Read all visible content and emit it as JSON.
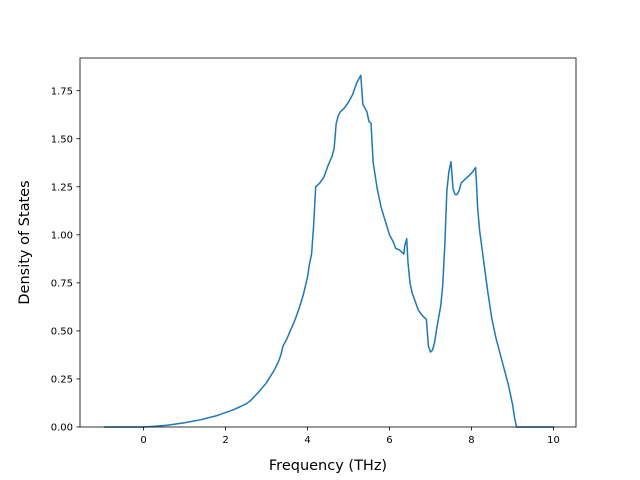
{
  "chart_data": {
    "type": "line",
    "title": "",
    "xlabel": "Frequency (THz)",
    "ylabel": "Density of States",
    "xlim": [
      -1.55,
      10.55
    ],
    "ylim": [
      0.0,
      1.92
    ],
    "xticks": [
      0,
      2,
      4,
      6,
      8,
      10
    ],
    "xtick_labels": [
      "0",
      "2",
      "4",
      "6",
      "8",
      "10"
    ],
    "yticks": [
      0.0,
      0.25,
      0.5,
      0.75,
      1.0,
      1.25,
      1.5,
      1.75
    ],
    "ytick_labels": [
      "0.00",
      "0.25",
      "0.50",
      "0.75",
      "1.00",
      "1.25",
      "1.50",
      "1.75"
    ],
    "grid": false,
    "legend": "none",
    "series": [
      {
        "color": "#1f77b4",
        "x": [
          -0.95,
          0.0,
          0.3,
          0.6,
          1.0,
          1.4,
          1.8,
          2.2,
          2.5,
          2.6,
          2.8,
          3.0,
          3.1,
          3.2,
          3.3,
          3.35,
          3.4,
          3.5,
          3.6,
          3.7,
          3.8,
          3.9,
          4.0,
          4.05,
          4.1,
          4.15,
          4.2,
          4.3,
          4.4,
          4.5,
          4.6,
          4.65,
          4.7,
          4.75,
          4.8,
          4.9,
          5.0,
          5.05,
          5.1,
          5.15,
          5.2,
          5.25,
          5.3,
          5.35,
          5.4,
          5.45,
          5.5,
          5.55,
          5.6,
          5.7,
          5.8,
          5.9,
          6.0,
          6.1,
          6.15,
          6.25,
          6.35,
          6.37,
          6.42,
          6.45,
          6.5,
          6.55,
          6.6,
          6.7,
          6.8,
          6.85,
          6.9,
          6.95,
          7.0,
          7.05,
          7.1,
          7.15,
          7.25,
          7.3,
          7.35,
          7.4,
          7.45,
          7.5,
          7.55,
          7.6,
          7.65,
          7.7,
          7.75,
          7.8,
          7.85,
          8.0,
          8.1,
          8.12,
          8.15,
          8.2,
          8.3,
          8.4,
          8.5,
          8.6,
          8.7,
          8.8,
          8.9,
          9.0,
          9.05,
          9.1,
          9.5,
          10.0
        ],
        "y": [
          0.0,
          0.0,
          0.004,
          0.01,
          0.022,
          0.038,
          0.06,
          0.09,
          0.12,
          0.135,
          0.18,
          0.23,
          0.265,
          0.3,
          0.345,
          0.375,
          0.42,
          0.46,
          0.51,
          0.56,
          0.62,
          0.69,
          0.78,
          0.85,
          0.9,
          1.05,
          1.25,
          1.27,
          1.3,
          1.36,
          1.41,
          1.45,
          1.58,
          1.62,
          1.64,
          1.66,
          1.69,
          1.71,
          1.73,
          1.76,
          1.79,
          1.81,
          1.83,
          1.68,
          1.66,
          1.64,
          1.59,
          1.58,
          1.38,
          1.24,
          1.14,
          1.07,
          1.0,
          0.96,
          0.93,
          0.92,
          0.9,
          0.94,
          0.98,
          0.86,
          0.75,
          0.7,
          0.67,
          0.61,
          0.58,
          0.57,
          0.56,
          0.42,
          0.39,
          0.4,
          0.44,
          0.51,
          0.63,
          0.74,
          0.95,
          1.23,
          1.33,
          1.38,
          1.24,
          1.21,
          1.21,
          1.23,
          1.27,
          1.28,
          1.29,
          1.32,
          1.35,
          1.28,
          1.14,
          1.02,
          0.86,
          0.7,
          0.56,
          0.46,
          0.38,
          0.3,
          0.22,
          0.12,
          0.05,
          0.0,
          0.0,
          0.0
        ]
      }
    ]
  }
}
